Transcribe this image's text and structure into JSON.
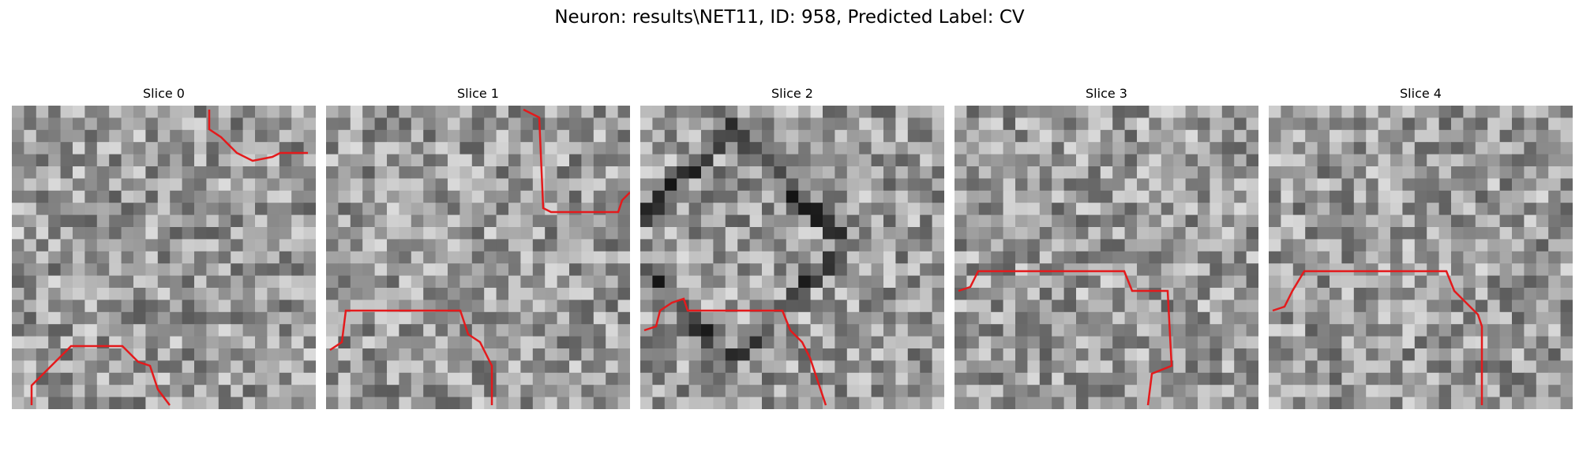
{
  "figure": {
    "title": "Neuron: results\\NET11, ID: 958, Predicted Label: CV"
  },
  "panels": [
    {
      "title": "Slice 0",
      "outline_color": "#e41a1c"
    },
    {
      "title": "Slice 1",
      "outline_color": "#e41a1c"
    },
    {
      "title": "Slice 2",
      "outline_color": "#e41a1c"
    },
    {
      "title": "Slice 3",
      "outline_color": "#e41a1c"
    },
    {
      "title": "Slice 4",
      "outline_color": "#e41a1c"
    }
  ]
}
